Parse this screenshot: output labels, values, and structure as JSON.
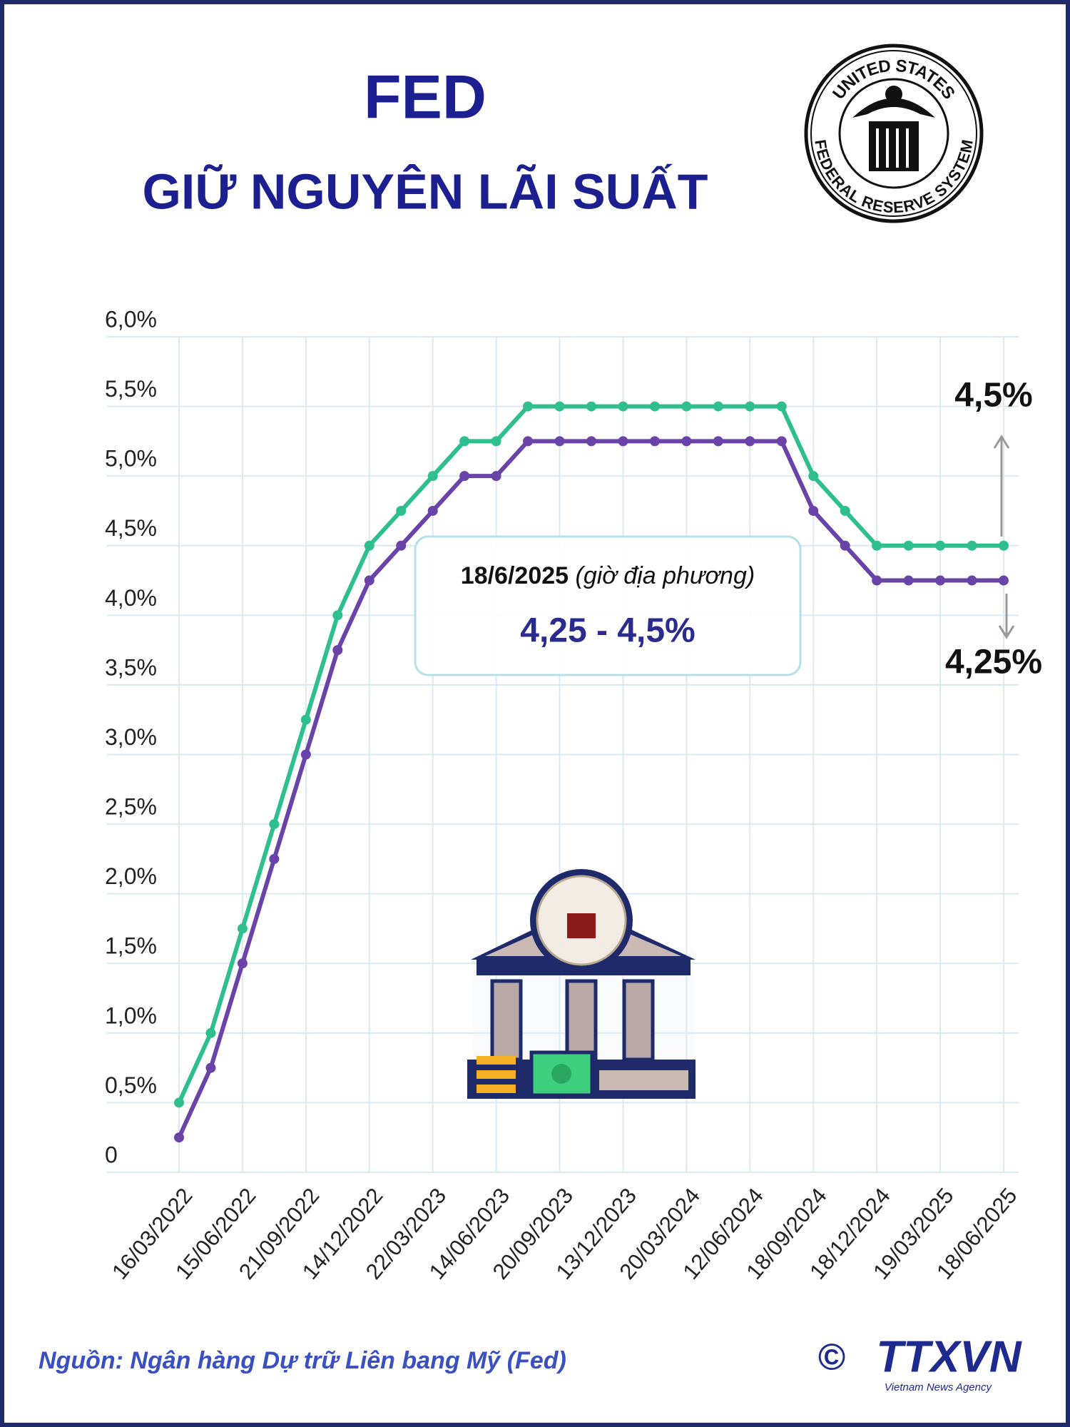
{
  "header": {
    "title": "FED",
    "subtitle": "GIỮ NGUYÊN LÃI SUẤT"
  },
  "seal": {
    "top": "UNITED STATES",
    "bottom": "FEDERAL RESERVE SYSTEM"
  },
  "chart_data": {
    "type": "line",
    "categories": [
      "16/03/2022",
      null,
      "15/06/2022",
      null,
      "21/09/2022",
      null,
      "14/12/2022",
      null,
      "22/03/2023",
      null,
      "14/06/2023",
      null,
      "20/09/2023",
      null,
      "13/12/2023",
      null,
      "20/03/2024",
      null,
      "12/06/2024",
      null,
      "18/09/2024",
      null,
      "18/12/2024",
      null,
      "19/03/2025",
      null,
      "18/06/2025"
    ],
    "series": [
      {
        "color": "#2fbf8f",
        "values": [
          0.5,
          1.0,
          1.75,
          2.5,
          3.25,
          4.0,
          4.5,
          4.75,
          5.0,
          5.25,
          5.25,
          5.5,
          5.5,
          5.5,
          5.5,
          5.5,
          5.5,
          5.5,
          5.5,
          5.5,
          5.0,
          4.75,
          4.5,
          4.5,
          4.5,
          4.5,
          4.5
        ]
      },
      {
        "color": "#6a43a8",
        "values": [
          0.25,
          0.75,
          1.5,
          2.25,
          3.0,
          3.75,
          4.25,
          4.5,
          4.75,
          5.0,
          5.0,
          5.25,
          5.25,
          5.25,
          5.25,
          5.25,
          5.25,
          5.25,
          5.25,
          5.25,
          4.75,
          4.5,
          4.25,
          4.25,
          4.25,
          4.25,
          4.25
        ]
      }
    ],
    "ylim": [
      0,
      6
    ],
    "yticks": [
      0,
      {
        "value": 0.5,
        "label": "0,5%"
      },
      {
        "value": 1,
        "label": "1,0%"
      },
      {
        "value": 1.5,
        "label": "1,5%"
      },
      {
        "value": 2,
        "label": "2,0%"
      },
      {
        "value": 2.5,
        "label": "2,5%"
      },
      {
        "value": 3,
        "label": "3,0%"
      },
      {
        "value": 3.5,
        "label": "3,5%"
      },
      {
        "value": 4,
        "label": "4,0%"
      },
      {
        "value": 4.5,
        "label": "4,5%"
      },
      {
        "value": 5,
        "label": "5,0%"
      },
      {
        "value": 5.5,
        "label": "5,5%"
      },
      {
        "value": 6,
        "label": "6,0%"
      }
    ],
    "grid": true,
    "annotations": {
      "date": "18/6/2025",
      "note": "(giờ địa phương)",
      "range": "4,25 - 4,5%",
      "upper": "4,5%",
      "lower": "4,25%"
    }
  },
  "footer": {
    "source": "Nguồn: Ngân hàng Dự trữ Liên bang Mỹ (Fed)",
    "copyright": "©",
    "logo": "TTXVN",
    "logo_sub": "Vietnam News Agency"
  }
}
